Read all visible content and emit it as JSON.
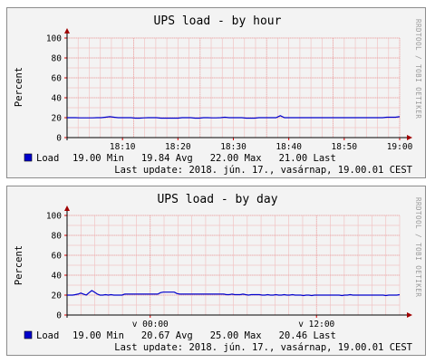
{
  "chart_data": [
    {
      "type": "line",
      "title": "UPS load - by hour",
      "ylabel": "Percent",
      "ylim": [
        0,
        100
      ],
      "y_ticks": [
        "0",
        "20",
        "40",
        "60",
        "80",
        "100"
      ],
      "x_ticks": [
        "18:10",
        "18:20",
        "18:30",
        "18:40",
        "18:50",
        "19:00"
      ],
      "grid": true,
      "watermark": "RRDTOOL / TOBI OETIKER",
      "series": [
        {
          "name": "Load",
          "color": "#0000cc",
          "values": [
            20,
            20,
            20,
            19.8,
            19.8,
            19.8,
            19.8,
            20,
            20,
            20.5,
            21,
            20.5,
            20,
            20,
            20,
            20,
            19.5,
            19.5,
            19.8,
            20,
            20,
            20,
            19.5,
            19.5,
            19.5,
            19.5,
            19.5,
            20,
            20,
            20,
            19.5,
            19.5,
            20,
            20,
            19.8,
            19.8,
            20,
            20.5,
            20,
            20,
            20,
            20,
            19.5,
            19.5,
            19.5,
            20,
            20,
            20,
            20,
            20,
            22,
            20,
            20,
            20,
            20,
            20,
            20,
            20,
            20,
            20,
            20,
            20,
            20,
            20,
            20,
            20,
            20,
            20,
            20,
            20,
            20,
            20,
            20,
            20,
            20,
            20.5,
            20.5,
            20.5,
            21
          ]
        }
      ],
      "legend": {
        "label": "Load",
        "stats": "19.00 Min   19.84 Avg   22.00 Max   21.00 Last",
        "last_update": "Last update: 2018. jún. 17., vasárnap, 19.00.01 CEST"
      }
    },
    {
      "type": "line",
      "title": "UPS load - by day",
      "ylabel": "Percent",
      "ylim": [
        0,
        100
      ],
      "y_ticks": [
        "0",
        "20",
        "40",
        "60",
        "80",
        "100"
      ],
      "x_ticks": [
        "v 00:00",
        "v 12:00"
      ],
      "grid": true,
      "watermark": "RRDTOOL / TOBI OETIKER",
      "series": [
        {
          "name": "Load",
          "color": "#0000cc",
          "values": [
            20,
            20,
            20,
            20.5,
            21,
            22,
            21,
            20,
            22.5,
            24.5,
            23,
            21,
            20,
            20,
            20.5,
            20,
            20.5,
            20,
            20,
            20,
            20,
            21,
            21,
            21,
            21,
            21,
            21,
            21,
            21,
            21,
            21,
            21,
            21,
            21,
            22.5,
            23,
            23,
            23,
            23,
            23,
            21.5,
            21,
            21,
            21,
            21,
            21,
            21,
            21,
            21,
            21,
            21,
            21,
            21,
            21,
            21,
            21,
            21,
            21,
            20.5,
            20.5,
            21,
            20.5,
            20.5,
            20.5,
            21,
            20.5,
            20,
            20.5,
            20.5,
            20.5,
            20.5,
            20,
            20,
            20.5,
            20,
            20,
            20.5,
            20,
            20,
            20.5,
            20,
            20,
            20.5,
            20,
            20,
            20,
            19.5,
            20,
            20,
            19.5,
            20,
            20,
            20,
            20,
            20,
            20,
            20,
            20,
            20,
            20,
            19.5,
            20,
            20,
            20.5,
            20,
            20,
            20,
            20,
            20,
            20,
            20,
            20,
            20,
            20,
            20,
            20,
            19.5,
            20,
            20,
            20,
            20,
            20.5
          ]
        }
      ],
      "legend": {
        "label": "Load",
        "stats": "19.00 Min   20.67 Avg   25.00 Max   20.46 Last",
        "last_update": "Last update: 2018. jún. 17., vasárnap, 19.00.01 CEST"
      }
    }
  ]
}
